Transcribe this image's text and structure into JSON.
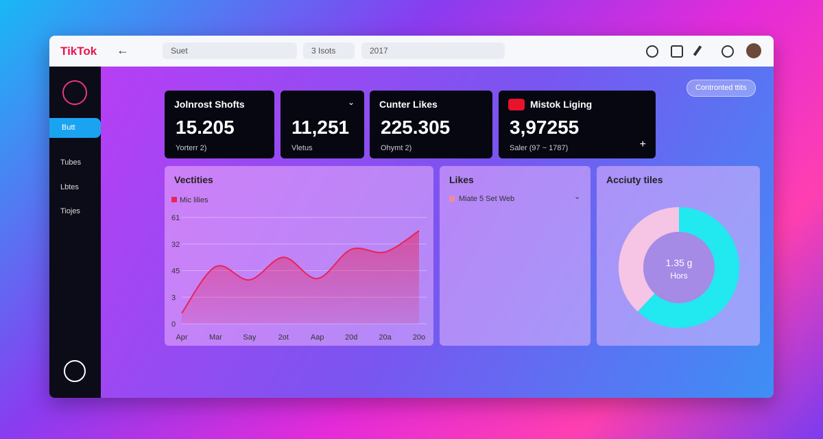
{
  "header": {
    "logo": "TikTok",
    "search": "Suet",
    "filter": "3 Isots",
    "year": "2017"
  },
  "sidebar": {
    "items": [
      "Butt",
      "Tubes",
      "Lbtes",
      "Tiojes"
    ]
  },
  "badge": "Contronted ttits",
  "stats": [
    {
      "title": "Jolnrost Shofts",
      "value": "15.205",
      "sub": "Yorterr 2)"
    },
    {
      "value": "11,251",
      "sub": "Vletus"
    },
    {
      "title": "Cunter Likes",
      "value": "225.305",
      "sub": "Ohymt 2)"
    },
    {
      "title": "Mistok Liging",
      "value": "3,97255",
      "sub": "Saler (97 ~ 1787)"
    }
  ],
  "panels": {
    "activity": {
      "title": "Vectities",
      "chart_data": {
        "type": "area",
        "series": [
          {
            "name": "Mic lilies",
            "color": "#e8245a",
            "values": [
              0.4,
              2.15,
              1.65,
              2.5,
              1.7,
              2.8,
              2.7,
              3.5
            ]
          }
        ],
        "categories": [
          "Apr",
          "Mar",
          "Say",
          "2ot",
          "Aap",
          "20d",
          "20a",
          "20o"
        ],
        "ylim": [
          0,
          4.4
        ],
        "yticks": [
          {
            "value": 4,
            "label": "61"
          },
          {
            "value": 3,
            "label": "32"
          },
          {
            "value": 2,
            "label": "45"
          },
          {
            "value": 1,
            "label": "3"
          },
          {
            "value": 0,
            "label": "0"
          }
        ]
      }
    },
    "likes": {
      "title": "Likes",
      "filter": "Miate 5 Set Web"
    },
    "tiles": {
      "title": "Acciuty tiles",
      "chart_data": {
        "type": "donut",
        "center_value": "1.35 g",
        "center_label": "Hors",
        "values": [
          62,
          38
        ],
        "colors": [
          "#22e8f0",
          "#f6c4e4"
        ]
      }
    }
  }
}
